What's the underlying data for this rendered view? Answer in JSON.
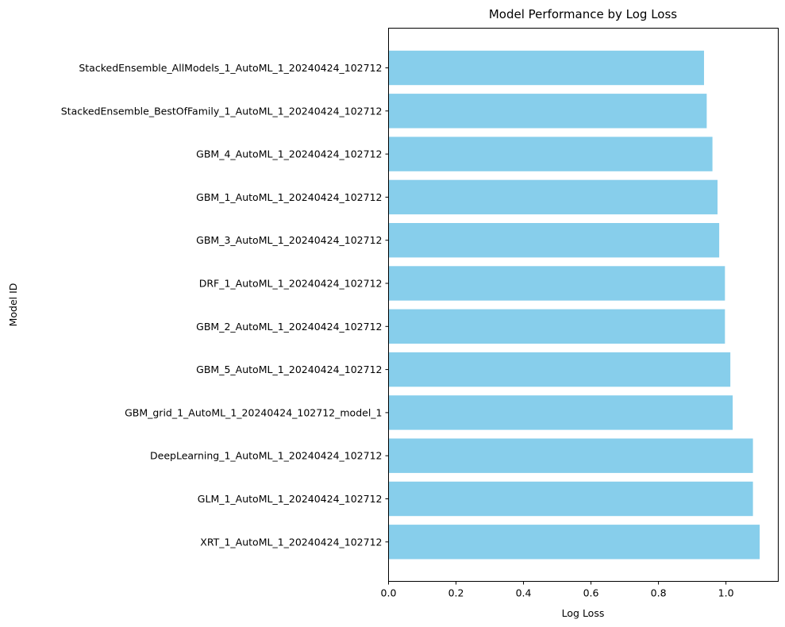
{
  "chart_data": {
    "type": "bar",
    "orientation": "horizontal",
    "title": "Model Performance by Log Loss",
    "xlabel": "Log Loss",
    "ylabel": "Model ID",
    "xlim": [
      0,
      1.155
    ],
    "xticks": [
      "0.0",
      "0.2",
      "0.4",
      "0.6",
      "0.8",
      "1.0"
    ],
    "xtick_values": [
      0,
      0.2,
      0.4,
      0.6,
      0.8,
      1.0
    ],
    "grid": false,
    "bar_color": "#87CEEB",
    "categories": [
      "StackedEnsemble_AllModels_1_AutoML_1_20240424_102712",
      "StackedEnsemble_BestOfFamily_1_AutoML_1_20240424_102712",
      "GBM_4_AutoML_1_20240424_102712",
      "GBM_1_AutoML_1_20240424_102712",
      "GBM_3_AutoML_1_20240424_102712",
      "DRF_1_AutoML_1_20240424_102712",
      "GBM_2_AutoML_1_20240424_102712",
      "GBM_5_AutoML_1_20240424_102712",
      "GBM_grid_1_AutoML_1_20240424_102712_model_1",
      "DeepLearning_1_AutoML_1_20240424_102712",
      "GLM_1_AutoML_1_20240424_102712",
      "XRT_1_AutoML_1_20240424_102712"
    ],
    "values": [
      0.935,
      0.943,
      0.96,
      0.975,
      0.98,
      0.997,
      0.997,
      1.013,
      1.02,
      1.08,
      1.08,
      1.1
    ]
  }
}
